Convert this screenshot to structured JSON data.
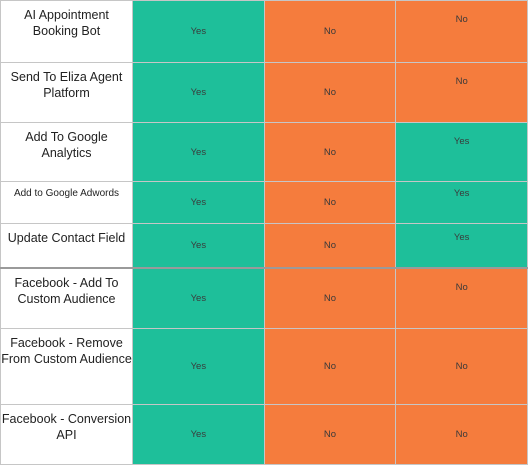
{
  "colors": {
    "yes": "#1ebf9a",
    "no": "#f57c3d"
  },
  "rows": [
    {
      "feature": "AI Appointment Booking Bot",
      "values": [
        "Yes",
        "No",
        "No"
      ]
    },
    {
      "feature": "Send To Eliza Agent Platform",
      "values": [
        "Yes",
        "No",
        "No"
      ]
    },
    {
      "feature": "Add To Google Analytics",
      "values": [
        "Yes",
        "No",
        "Yes"
      ]
    },
    {
      "feature": "Add to Google Adwords",
      "values": [
        "Yes",
        "No",
        "Yes"
      ]
    },
    {
      "feature": "Update Contact Field",
      "values": [
        "Yes",
        "No",
        "Yes"
      ]
    },
    {
      "feature": "Facebook - Add To Custom Audience",
      "values": [
        "Yes",
        "No",
        "No"
      ]
    },
    {
      "feature": "Facebook - Remove From Custom Audience",
      "values": [
        "Yes",
        "No",
        "No"
      ]
    },
    {
      "feature": "Facebook - Conversion API",
      "values": [
        "Yes",
        "No",
        "No"
      ]
    }
  ]
}
